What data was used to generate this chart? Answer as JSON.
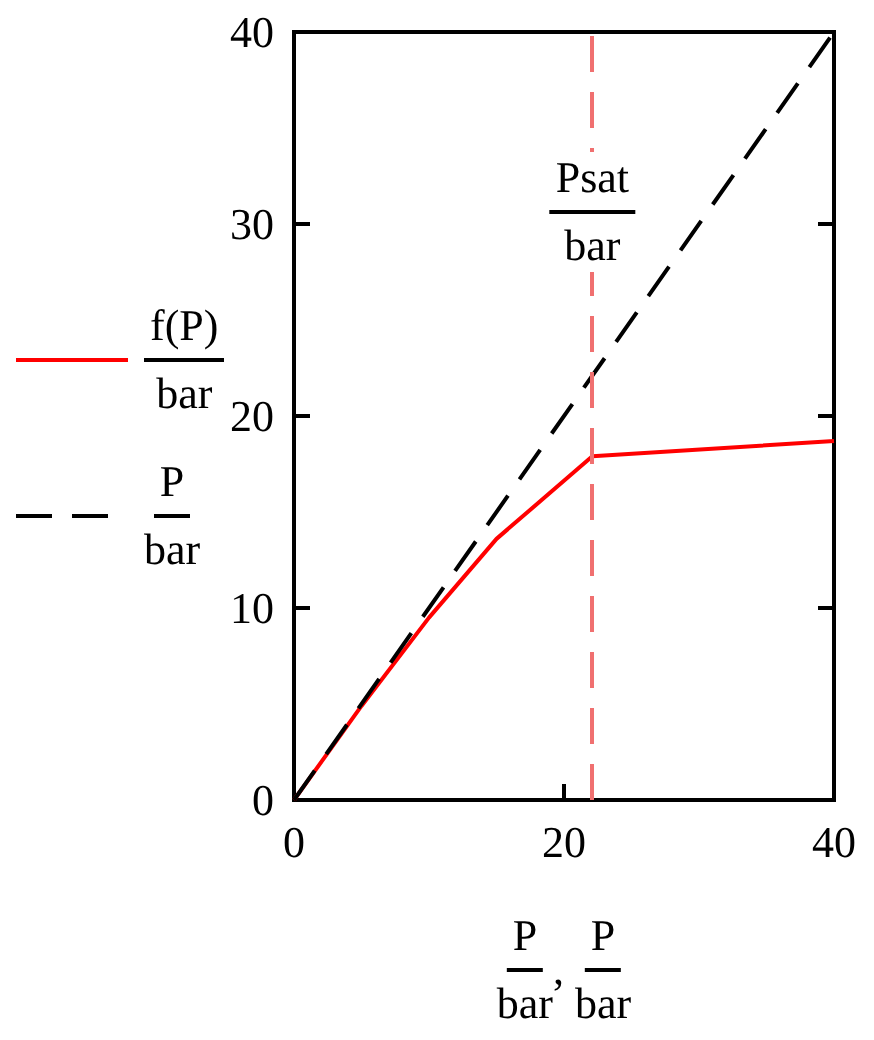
{
  "chart_data": {
    "type": "line",
    "xlabel": "P\nbar, P\nbar",
    "xlim": [
      0,
      40
    ],
    "xticks": [
      0,
      20,
      40
    ],
    "ylim": [
      0,
      40
    ],
    "yticks": [
      0,
      10,
      20,
      30,
      40
    ],
    "grid": false,
    "legend": "left",
    "marker": "none",
    "series": [
      {
        "name": "f(P)\nbar",
        "color": "#ff0000",
        "line_style": "solid",
        "x": [
          0,
          5,
          10,
          15,
          22.1,
          40
        ],
        "values": [
          0,
          4.9,
          9.5,
          13.6,
          17.9,
          18.7
        ]
      },
      {
        "name": "P\nbar",
        "color": "#000000",
        "line_style": "dashed",
        "x": [
          0,
          40
        ],
        "values": [
          0,
          40
        ]
      }
    ],
    "ref_lines": [
      {
        "axis": "x",
        "value": 22.1,
        "label": "Psat\nbar",
        "color": "#f07070",
        "line_style": "dashed"
      }
    ]
  }
}
